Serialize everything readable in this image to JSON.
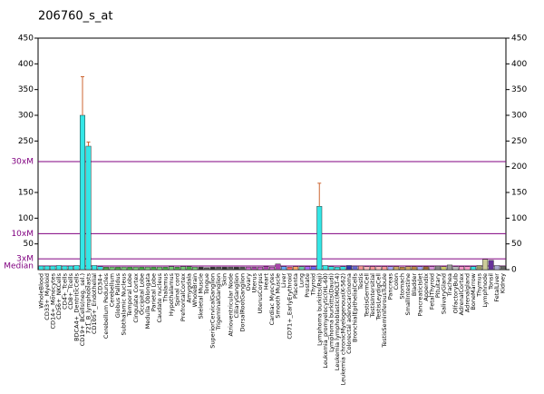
{
  "chart_data": {
    "type": "bar",
    "title": "206760_s_at",
    "categories": [
      "WholeBlood",
      "CD33+_Myeloid",
      "CD14+_Monocytes",
      "CD56+_NKCells",
      "CD4+_Tcells",
      "CD8+_Tcells",
      "BDCA4+_DentriticCells",
      "CD19+_BCells(neg._sel.)",
      "721_B_lymphoblasts",
      "CD105+_Endothelial",
      "CD34+",
      "Cerebellum Peduncles",
      "Cerebellum",
      "Globus Pallidus",
      "Subthalamic Nucleus",
      "Temporal Lobe",
      "Cingulate Cortex",
      "Occipital Lobe",
      "Medulla Oblongata",
      "Parietal Lobe",
      "Caudate nucleus",
      "Thalamus",
      "Hypothalamus",
      "Spinal cord",
      "PrefrontalCortex",
      "Amygdala",
      "WholeBrain",
      "Skeletal Muscle",
      "Tongue",
      "SuperiorCervicalGanglion",
      "TrigeminalGanglion",
      "Skin",
      "Atrioventricular Node",
      "CiliaryGanglion",
      "DorsalRootGanglion",
      "Ovary",
      "Uterus",
      "UterusCorpus",
      "Heart",
      "Cardiac Myocytes",
      "Smooth Muscle",
      "Liver",
      "CD71+_EarlyErythroid",
      "Placenta",
      "Lung",
      "Prostate",
      "Thyroid",
      "Lymphoma burkitts(Raji)",
      "Leukemia_promyelocytic(HL-60)",
      "Lymphoma burkitts(Daudi)",
      "Leukemia lymphoblastic(MOLT-4)",
      "Leukemia chronicMyelogenous(K-562)",
      "Colorectal adenocarcinoma",
      "BronchialEpithelialCells",
      "Testis",
      "TestisGermCell",
      "TestisIntersitial",
      "TestisLeydigCell",
      "TestisSeminiferousTubule",
      "Pancreas",
      "Colon",
      "Stomach",
      "SmallIntestine",
      "Bladder",
      "PancreaticIslet",
      "Appendix",
      "FetalThyroid",
      "Pituitary",
      "SalivaryGland",
      "Trachea",
      "OlfactoryBulb",
      "AdrenalCortex",
      "Adrenalgland",
      "BoneMarrow",
      "Thymus",
      "Lymphnode",
      "Tonsil",
      "FetalLiver",
      "Kidney"
    ],
    "values": [
      7,
      7,
      7,
      8,
      7,
      7,
      8,
      300,
      240,
      8,
      6,
      5,
      5,
      5,
      5,
      5,
      5,
      5,
      5,
      5,
      5,
      5,
      6,
      5,
      6,
      6,
      5,
      5,
      4,
      5,
      5,
      5,
      5,
      5,
      5,
      5,
      5,
      5,
      6,
      5,
      11,
      6,
      5,
      6,
      6,
      6,
      6,
      123,
      8,
      6,
      5,
      6,
      8,
      7,
      7,
      6,
      6,
      6,
      6,
      6,
      6,
      5,
      6,
      6,
      6,
      6,
      6,
      7,
      6,
      9,
      6,
      6,
      6,
      6,
      8,
      20,
      18,
      8,
      7
    ],
    "errors": [
      null,
      null,
      null,
      null,
      null,
      null,
      null,
      75,
      8,
      null,
      null,
      null,
      null,
      null,
      null,
      null,
      null,
      null,
      null,
      null,
      null,
      null,
      null,
      null,
      null,
      null,
      null,
      null,
      null,
      null,
      null,
      null,
      null,
      null,
      null,
      null,
      null,
      null,
      null,
      null,
      null,
      null,
      null,
      null,
      null,
      null,
      null,
      45,
      null,
      null,
      null,
      null,
      null,
      null,
      null,
      null,
      null,
      null,
      null,
      null,
      null,
      null,
      null,
      null,
      null,
      null,
      null,
      null,
      null,
      null,
      null,
      null,
      null,
      null,
      null,
      null,
      null,
      null,
      null
    ],
    "colors": [
      "#33e6e6",
      "#33e6e6",
      "#33e6e6",
      "#33e6e6",
      "#33e6e6",
      "#33e6e6",
      "#33e6e6",
      "#33e6e6",
      "#33e6e6",
      "#33e6e6",
      "#33e6e6",
      "#44aa44",
      "#77cc77",
      "#44aa44",
      "#77cc77",
      "#44aa44",
      "#77cc77",
      "#44aa44",
      "#77cc77",
      "#44aa44",
      "#77cc77",
      "#44aa44",
      "#77cc77",
      "#44aa44",
      "#77cc77",
      "#44aa44",
      "#77cc77",
      "#333333",
      "#555555",
      "#333333",
      "#555555",
      "#333333",
      "#555555",
      "#333333",
      "#555555",
      "#cc66cc",
      "#aa44aa",
      "#cc66cc",
      "#aa44aa",
      "#cc66cc",
      "#aa44aa",
      "#66aaff",
      "#ff6666",
      "#ffaa66",
      "#66ccaa",
      "#aa66ff",
      "#6666ff",
      "#33e6e6",
      "#33e6e6",
      "#33e6e6",
      "#33e6e6",
      "#33e6e6",
      "#3333aa",
      "#6666cc",
      "#ff9999",
      "#ffbbbb",
      "#ff9999",
      "#ffbbbb",
      "#ff9999",
      "#aaaaff",
      "#ccaa66",
      "#bb8844",
      "#ccaa66",
      "#bb8844",
      "#aaaaff",
      "#996633",
      "#dd99dd",
      "#888888",
      "#cccc66",
      "#999999",
      "#bbbbbb",
      "#ff99cc",
      "#ff99cc",
      "#33e6e6",
      "#999966",
      "#cccc99",
      "#663399",
      "#aaaacc",
      "#666666"
    ],
    "ylim": [
      0,
      450
    ],
    "yticks": [
      0,
      50,
      100,
      150,
      200,
      250,
      300,
      350,
      400,
      450
    ],
    "left_yticks": [
      50,
      100,
      150,
      250,
      300,
      350,
      400,
      450
    ],
    "reference_lines": [
      {
        "label": "30xM",
        "value": 210
      },
      {
        "label": "10xM",
        "value": 70
      },
      {
        "label": "3xM",
        "value": 21
      },
      {
        "label": "Median",
        "value": 7
      }
    ]
  }
}
